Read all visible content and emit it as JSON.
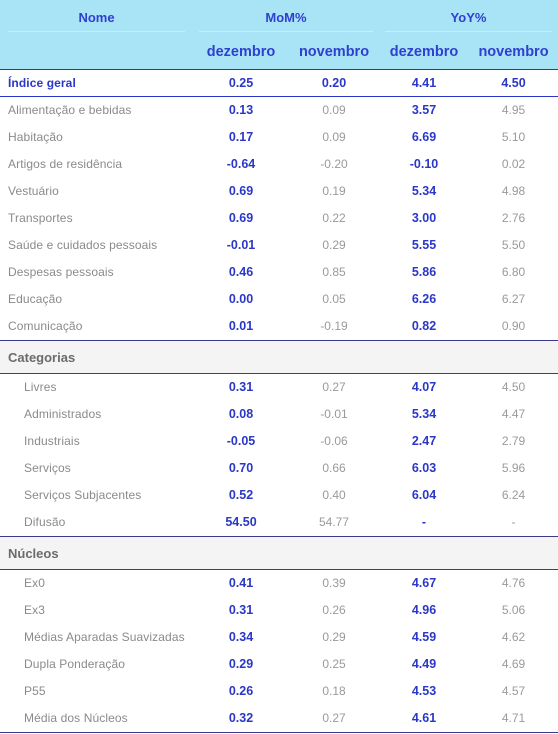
{
  "header": {
    "name": "Nome",
    "mom": "MoM%",
    "yoy": "YoY%",
    "dez": "dezembro",
    "nov": "novembro"
  },
  "main": {
    "name": "Índice geral",
    "mom_dez": "0.25",
    "mom_nov": "0.20",
    "yoy_dez": "4.41",
    "yoy_nov": "4.50"
  },
  "groups": [
    {
      "name": "Alimentação e bebidas",
      "mom_dez": "0.13",
      "mom_nov": "0.09",
      "yoy_dez": "3.57",
      "yoy_nov": "4.95"
    },
    {
      "name": "Habitação",
      "mom_dez": "0.17",
      "mom_nov": "0.09",
      "yoy_dez": "6.69",
      "yoy_nov": "5.10"
    },
    {
      "name": "Artigos de residência",
      "mom_dez": "-0.64",
      "mom_nov": "-0.20",
      "yoy_dez": "-0.10",
      "yoy_nov": "0.02"
    },
    {
      "name": "Vestuário",
      "mom_dez": "0.69",
      "mom_nov": "0.19",
      "yoy_dez": "5.34",
      "yoy_nov": "4.98"
    },
    {
      "name": "Transportes",
      "mom_dez": "0.69",
      "mom_nov": "0.22",
      "yoy_dez": "3.00",
      "yoy_nov": "2.76"
    },
    {
      "name": "Saúde e cuidados pessoais",
      "mom_dez": "-0.01",
      "mom_nov": "0.29",
      "yoy_dez": "5.55",
      "yoy_nov": "5.50"
    },
    {
      "name": "Despesas pessoais",
      "mom_dez": "0.46",
      "mom_nov": "0.85",
      "yoy_dez": "5.86",
      "yoy_nov": "6.80"
    },
    {
      "name": "Educação",
      "mom_dez": "0.00",
      "mom_nov": "0.05",
      "yoy_dez": "6.26",
      "yoy_nov": "6.27"
    },
    {
      "name": "Comunicação",
      "mom_dez": "0.01",
      "mom_nov": "-0.19",
      "yoy_dez": "0.82",
      "yoy_nov": "0.90"
    }
  ],
  "categorias": {
    "title": "Categorias",
    "rows": [
      {
        "name": "Livres",
        "mom_dez": "0.31",
        "mom_nov": "0.27",
        "yoy_dez": "4.07",
        "yoy_nov": "4.50"
      },
      {
        "name": "Administrados",
        "mom_dez": "0.08",
        "mom_nov": "-0.01",
        "yoy_dez": "5.34",
        "yoy_nov": "4.47"
      },
      {
        "name": "Industriais",
        "mom_dez": "-0.05",
        "mom_nov": "-0.06",
        "yoy_dez": "2.47",
        "yoy_nov": "2.79"
      },
      {
        "name": "Serviços",
        "mom_dez": "0.70",
        "mom_nov": "0.66",
        "yoy_dez": "6.03",
        "yoy_nov": "5.96"
      },
      {
        "name": "Serviços Subjacentes",
        "mom_dez": "0.52",
        "mom_nov": "0.40",
        "yoy_dez": "6.04",
        "yoy_nov": "6.24"
      },
      {
        "name": "Difusão",
        "mom_dez": "54.50",
        "mom_nov": "54.77",
        "yoy_dez": "-",
        "yoy_nov": "-"
      }
    ]
  },
  "nucleos": {
    "title": "Núcleos",
    "rows": [
      {
        "name": "Ex0",
        "mom_dez": "0.41",
        "mom_nov": "0.39",
        "yoy_dez": "4.67",
        "yoy_nov": "4.76"
      },
      {
        "name": "Ex3",
        "mom_dez": "0.31",
        "mom_nov": "0.26",
        "yoy_dez": "4.96",
        "yoy_nov": "5.06"
      },
      {
        "name": "Médias Aparadas Suavizadas",
        "mom_dez": "0.34",
        "mom_nov": "0.29",
        "yoy_dez": "4.59",
        "yoy_nov": "4.62"
      },
      {
        "name": "Dupla Ponderação",
        "mom_dez": "0.29",
        "mom_nov": "0.25",
        "yoy_dez": "4.49",
        "yoy_nov": "4.69"
      },
      {
        "name": "P55",
        "mom_dez": "0.26",
        "mom_nov": "0.18",
        "yoy_dez": "4.53",
        "yoy_nov": "4.57"
      },
      {
        "name": "Média dos Núcleos",
        "mom_dez": "0.32",
        "mom_nov": "0.27",
        "yoy_dez": "4.61",
        "yoy_nov": "4.71"
      }
    ]
  }
}
